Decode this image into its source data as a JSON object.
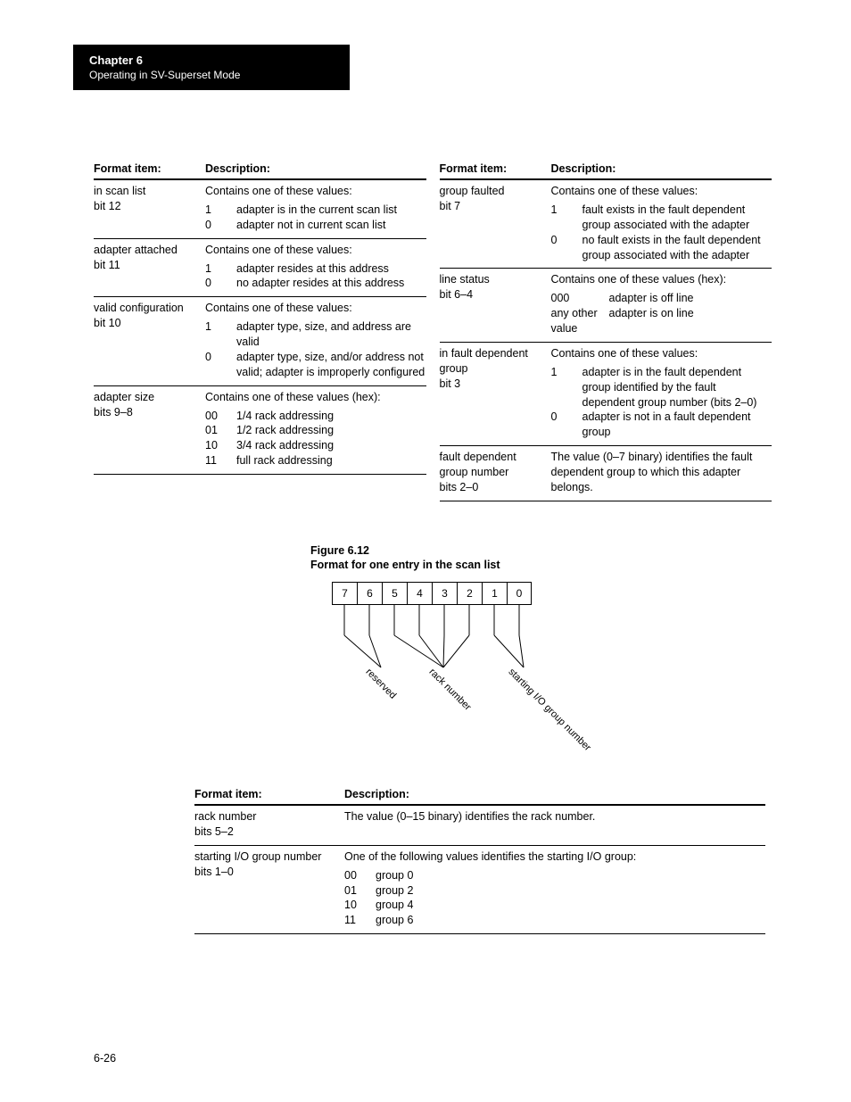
{
  "chapter": {
    "number_label": "Chapter  6",
    "subtitle": "Operating in SV-Superset Mode"
  },
  "page_number": "6-26",
  "table1": {
    "headers": {
      "fi": "Format item:",
      "de": "Description:"
    },
    "left": [
      {
        "fi_line1": "in scan list",
        "fi_line2": "bit 12",
        "intro": "Contains one of these values:",
        "vals": [
          {
            "k": "1",
            "v": "adapter is in the current scan list"
          },
          {
            "k": "0",
            "v": "adapter not in current scan list"
          }
        ]
      },
      {
        "fi_line1": "adapter attached",
        "fi_line2": "bit 11",
        "intro": "Contains one of these values:",
        "vals": [
          {
            "k": "1",
            "v": "adapter resides at this address"
          },
          {
            "k": "0",
            "v": "no adapter resides at this address"
          }
        ]
      },
      {
        "fi_line1": "valid configuration",
        "fi_line2": "bit 10",
        "intro": "Contains one of these values:",
        "vals": [
          {
            "k": "1",
            "v": "adapter type, size, and address are valid"
          },
          {
            "k": "0",
            "v": "adapter type, size, and/or address not valid; adapter is improperly configured"
          }
        ]
      },
      {
        "fi_line1": "adapter size",
        "fi_line2": "bits 9–8",
        "intro": "Contains one of these values (hex):",
        "vals": [
          {
            "k": "00",
            "v": "1/4 rack addressing"
          },
          {
            "k": "01",
            "v": "1/2 rack addressing"
          },
          {
            "k": "10",
            "v": "3/4 rack addressing"
          },
          {
            "k": "11",
            "v": "full rack addressing"
          }
        ]
      }
    ],
    "right": [
      {
        "fi_line1": "group faulted",
        "fi_line2": "bit 7",
        "intro": "Contains one of these values:",
        "vals": [
          {
            "k": "1",
            "v": "fault exists in the fault dependent group associated with the adapter"
          },
          {
            "k": "0",
            "v": "no fault exists in the fault dependent group associated with the adapter"
          }
        ]
      },
      {
        "fi_line1": "line status",
        "fi_line2": "bit 6–4",
        "intro": "Contains one of these values (hex):",
        "vals_wide": [
          {
            "k": "000",
            "v": "adapter is off line"
          },
          {
            "k": "any other value",
            "v": "adapter is on line"
          }
        ]
      },
      {
        "fi_line1": "in fault dependent group",
        "fi_line2": "bit 3",
        "intro": "Contains one of these values:",
        "vals": [
          {
            "k": "1",
            "v": "adapter is in the fault dependent group identified by the fault dependent group number (bits 2–0)"
          },
          {
            "k": "0",
            "v": "adapter is not in a fault dependent group"
          }
        ]
      },
      {
        "fi_line1": "fault dependent group number",
        "fi_line2": "bits 2–0",
        "plain": "The value (0–7 binary) identifies the fault dependent group to which this adapter belongs."
      }
    ]
  },
  "figure": {
    "line1": "Figure 6.12",
    "line2": "Format for one entry in the scan list",
    "bits": [
      "7",
      "6",
      "5",
      "4",
      "3",
      "2",
      "1",
      "0"
    ],
    "labels": {
      "reserved": "reserved",
      "rack_number": "rack number",
      "starting": "starting I/O group number"
    }
  },
  "table2": {
    "headers": {
      "fi": "Format item:",
      "de": "Description:"
    },
    "rows": [
      {
        "fi_line1": "rack number",
        "fi_line2": "bits 5–2",
        "plain": "The value (0–15 binary) identifies the rack number."
      },
      {
        "fi_line1": "starting I/O group number",
        "fi_line2": "bits 1–0",
        "intro": "One of the following values identifies the starting I/O group:",
        "vals": [
          {
            "k": "00",
            "v": "group 0"
          },
          {
            "k": "01",
            "v": "group 2"
          },
          {
            "k": "10",
            "v": "group 4"
          },
          {
            "k": "11",
            "v": "group 6"
          }
        ]
      }
    ]
  }
}
